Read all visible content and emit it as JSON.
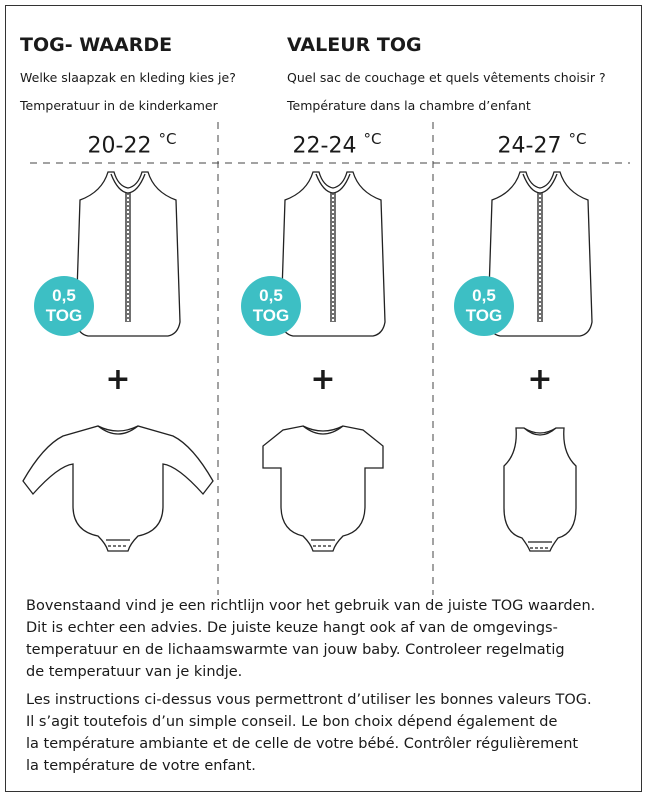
{
  "header": {
    "left": {
      "title": "TOG- WAARDE",
      "line1": "Welke slaapzak en kleding kies je?",
      "line2": "Temperatuur in de kinderkamer"
    },
    "right": {
      "title": "VALEUR TOG",
      "line1": "Quel sac de couchage et quels vêtements choisir ?",
      "line2": "Température dans la chambre d’enfant"
    }
  },
  "columns": [
    {
      "range": "20-22",
      "unit": "°C",
      "badge_value": "0,5",
      "badge_unit": "TOG",
      "plus": "+"
    },
    {
      "range": "22-24",
      "unit": "°C",
      "badge_value": "0,5",
      "badge_unit": "TOG",
      "plus": "+"
    },
    {
      "range": "24-27",
      "unit": "°C",
      "badge_value": "0,5",
      "badge_unit": "TOG",
      "plus": "+"
    }
  ],
  "notes": [
    [
      "Bovenstaand vind je een richtlijn voor het gebruik van de juiste TOG waarden.",
      "Dit is echter een advies. De juiste keuze hangt ook af van de omgevings-",
      "temperatuur en de lichaamswarmte van jouw baby.  Controleer regelmatig",
      "de temperatuur van je kindje."
    ],
    [
      "Les instructions ci-dessus vous permettront d’utiliser les bonnes valeurs TOG.",
      "Il s’agit toutefois d’un simple conseil. Le bon choix dépend également de",
      "la température ambiante et de celle de votre bébé. Contrôler régulièrement",
      "la température de votre enfant."
    ]
  ]
}
